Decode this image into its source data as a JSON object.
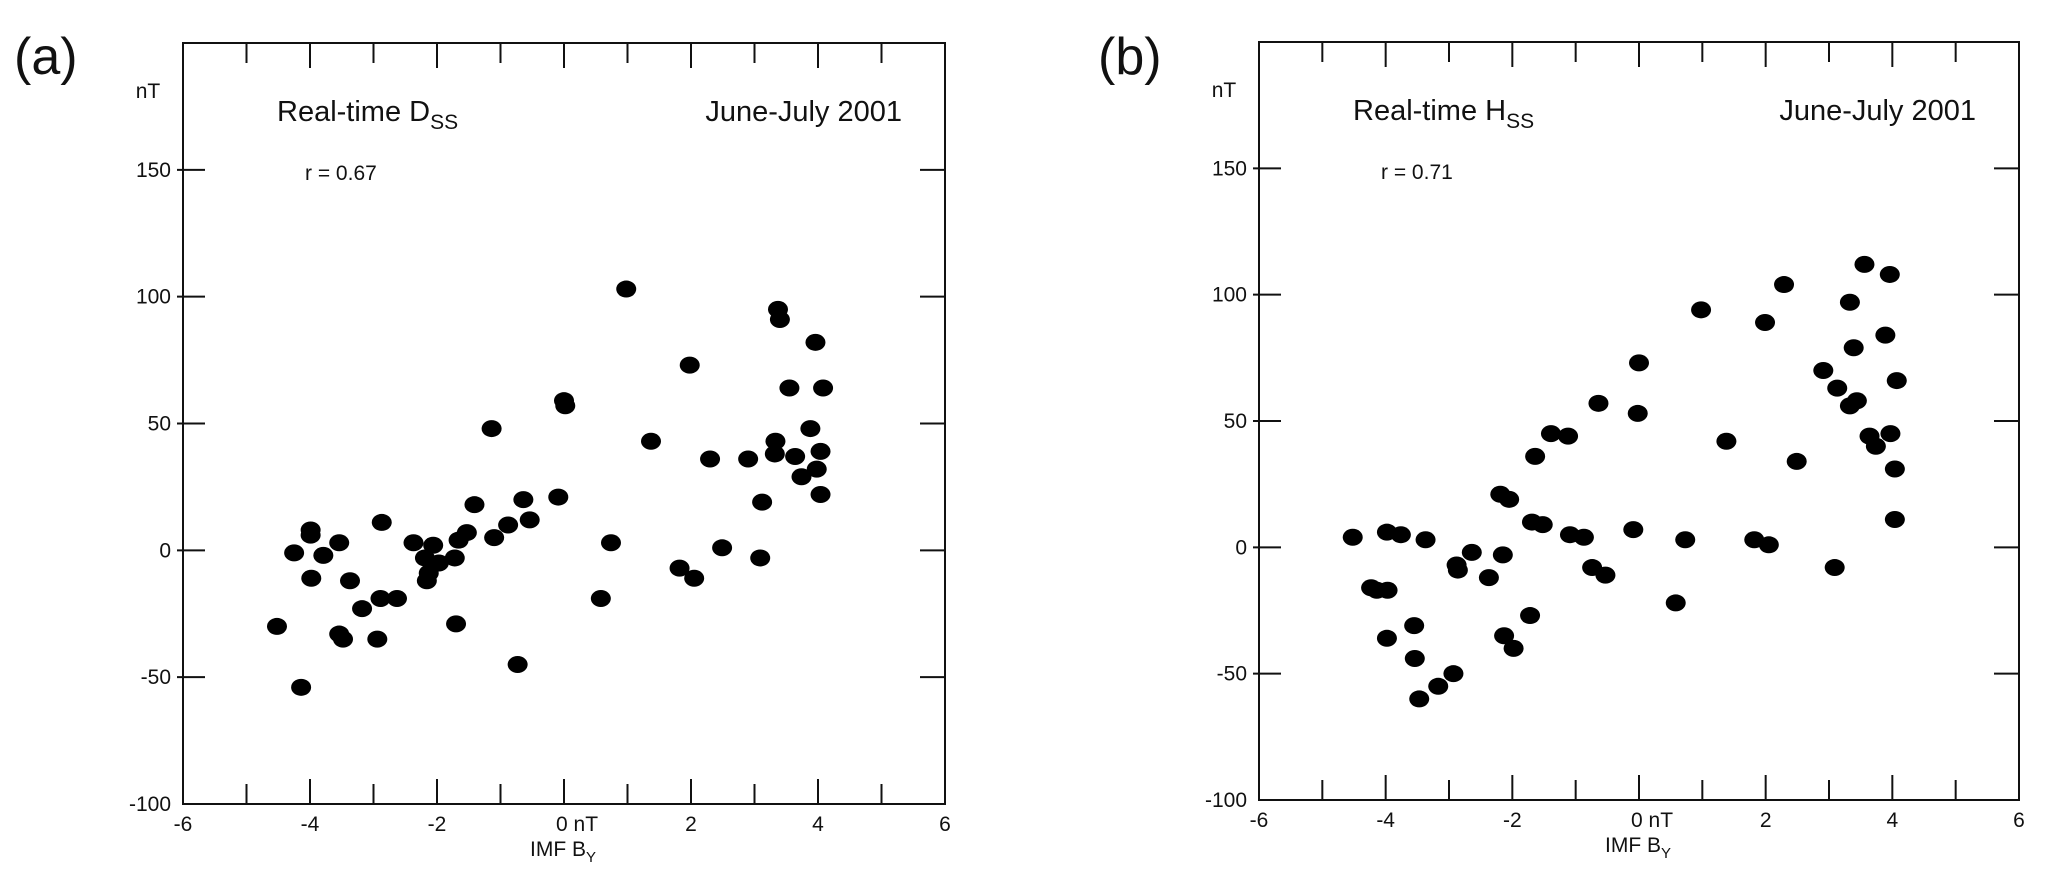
{
  "chart_data": [
    {
      "type": "scatter",
      "panel_label": "(a)",
      "title_main": "Real-time D",
      "title_sub": "SS",
      "period": "June-July 2001",
      "annotation": "r = 0.67",
      "ylabel": "nT",
      "xlabel_main": "IMF B",
      "xlabel_sub": "Y",
      "xlim": [
        -6,
        6
      ],
      "ylim": [
        -100,
        200
      ],
      "xticks": [
        "-6",
        "-4",
        "-2",
        "0 nT",
        "2",
        "4",
        "6"
      ],
      "xtick_values": [
        -6,
        -4,
        -2,
        0,
        2,
        4,
        6
      ],
      "yticks": [
        "150",
        "100",
        "50",
        "0",
        "-50",
        "-100"
      ],
      "ytick_values": [
        150,
        100,
        50,
        0,
        -50,
        -100
      ],
      "marker_color": "#000000",
      "points": [
        [
          0.98,
          103
        ],
        [
          3.37,
          95
        ],
        [
          3.4,
          91
        ],
        [
          3.96,
          82
        ],
        [
          1.98,
          73
        ],
        [
          3.55,
          64
        ],
        [
          4.08,
          64
        ],
        [
          0,
          59
        ],
        [
          0.02,
          57
        ],
        [
          -1.14,
          48
        ],
        [
          3.88,
          48
        ],
        [
          1.37,
          43
        ],
        [
          3.33,
          43
        ],
        [
          3.32,
          38
        ],
        [
          4.04,
          39
        ],
        [
          2.3,
          36
        ],
        [
          2.9,
          36
        ],
        [
          3.64,
          37
        ],
        [
          3.98,
          32
        ],
        [
          3.74,
          29
        ],
        [
          4.04,
          22
        ],
        [
          3.12,
          19
        ],
        [
          -0.09,
          21
        ],
        [
          -0.64,
          20
        ],
        [
          -1.41,
          18
        ],
        [
          -0.54,
          12
        ],
        [
          -0.88,
          10
        ],
        [
          -2.87,
          11
        ],
        [
          -1.53,
          7
        ],
        [
          -1.66,
          4
        ],
        [
          -1.1,
          5
        ],
        [
          -2.06,
          2
        ],
        [
          -2.37,
          3
        ],
        [
          -3.54,
          3
        ],
        [
          -3.99,
          8
        ],
        [
          -3.99,
          6
        ],
        [
          -4.25,
          -1
        ],
        [
          -3.79,
          -2
        ],
        [
          -2.19,
          -3
        ],
        [
          -1.72,
          -3
        ],
        [
          -1.97,
          -5
        ],
        [
          -2.13,
          -9
        ],
        [
          -2.16,
          -12
        ],
        [
          -3.98,
          -11
        ],
        [
          -3.37,
          -12
        ],
        [
          0.74,
          3
        ],
        [
          2.49,
          1
        ],
        [
          3.09,
          -3
        ],
        [
          1.82,
          -7
        ],
        [
          2.05,
          -11
        ],
        [
          -2.89,
          -19
        ],
        [
          -2.63,
          -19
        ],
        [
          0.58,
          -19
        ],
        [
          -3.18,
          -23
        ],
        [
          -4.52,
          -30
        ],
        [
          -1.7,
          -29
        ],
        [
          -3.54,
          -33
        ],
        [
          -3.48,
          -35
        ],
        [
          -2.94,
          -35
        ],
        [
          -0.73,
          -45
        ],
        [
          -4.14,
          -54
        ]
      ]
    },
    {
      "type": "scatter",
      "panel_label": "(b)",
      "title_main": "Real-time H",
      "title_sub": "SS",
      "period": "June-July 2001",
      "annotation": "r = 0.71",
      "ylabel": "nT",
      "xlabel_main": "IMF B",
      "xlabel_sub": "Y",
      "xlim": [
        -6,
        6
      ],
      "ylim": [
        -100,
        200
      ],
      "xticks": [
        "-6",
        "-4",
        "-2",
        "0 nT",
        "2",
        "4",
        "6"
      ],
      "xtick_values": [
        -6,
        -4,
        -2,
        0,
        2,
        4,
        6
      ],
      "yticks": [
        "150",
        "100",
        "50",
        "0",
        "-50",
        "-100"
      ],
      "ytick_values": [
        150,
        100,
        50,
        0,
        -50,
        -100
      ],
      "marker_color": "#000000",
      "points": [
        [
          3.56,
          112
        ],
        [
          3.96,
          108
        ],
        [
          2.29,
          104
        ],
        [
          3.33,
          97
        ],
        [
          0.98,
          94
        ],
        [
          1.99,
          89
        ],
        [
          3.89,
          84
        ],
        [
          3.39,
          79
        ],
        [
          0,
          73
        ],
        [
          2.91,
          70
        ],
        [
          4.07,
          66
        ],
        [
          3.13,
          63
        ],
        [
          3.44,
          58
        ],
        [
          3.33,
          56
        ],
        [
          -0.64,
          57
        ],
        [
          -0.02,
          53
        ],
        [
          -1.39,
          45
        ],
        [
          -1.12,
          44
        ],
        [
          3.64,
          44
        ],
        [
          3.97,
          45
        ],
        [
          1.38,
          42
        ],
        [
          3.74,
          40
        ],
        [
          -1.64,
          36
        ],
        [
          2.49,
          34
        ],
        [
          4.04,
          31
        ],
        [
          -2.19,
          21
        ],
        [
          -2.05,
          19
        ],
        [
          4.04,
          11
        ],
        [
          -1.69,
          10
        ],
        [
          -1.52,
          9
        ],
        [
          -0.09,
          7
        ],
        [
          -1.09,
          5
        ],
        [
          -0.87,
          4
        ],
        [
          0.73,
          3
        ],
        [
          1.82,
          3
        ],
        [
          2.05,
          1
        ],
        [
          -4.52,
          4
        ],
        [
          -3.98,
          6
        ],
        [
          -3.76,
          5
        ],
        [
          -3.37,
          3
        ],
        [
          -2.64,
          -2
        ],
        [
          -2.15,
          -3
        ],
        [
          -2.88,
          -7
        ],
        [
          -2.86,
          -9
        ],
        [
          -2.37,
          -12
        ],
        [
          -0.74,
          -8
        ],
        [
          -0.53,
          -11
        ],
        [
          3.09,
          -8
        ],
        [
          -4.23,
          -16
        ],
        [
          -4.14,
          -17
        ],
        [
          -3.97,
          -17
        ],
        [
          0.58,
          -22
        ],
        [
          -1.72,
          -27
        ],
        [
          -3.55,
          -31
        ],
        [
          -2.13,
          -35
        ],
        [
          -3.98,
          -36
        ],
        [
          -1.98,
          -40
        ],
        [
          -3.54,
          -44
        ],
        [
          -2.93,
          -50
        ],
        [
          -3.17,
          -55
        ],
        [
          -3.47,
          -60
        ]
      ]
    }
  ]
}
